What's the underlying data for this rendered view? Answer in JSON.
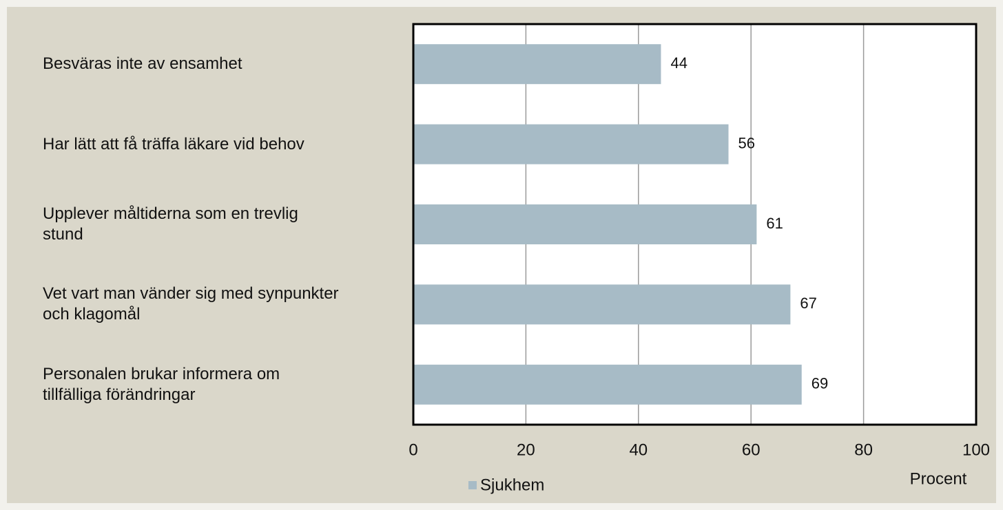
{
  "chart_data": {
    "type": "bar",
    "orientation": "horizontal",
    "categories": [
      "Besväras inte av ensamhet",
      "Har lätt att få träffa läkare vid behov",
      "Upplever måltiderna som en trevlig stund",
      "Vet vart man vänder sig med synpunkter och klagomål",
      "Personalen brukar informera om tillfälliga förändringar"
    ],
    "series": [
      {
        "name": "Sjukhem",
        "color": "#a7bbc6",
        "values": [
          44,
          56,
          61,
          67,
          69
        ]
      }
    ],
    "x_label": "Procent",
    "xlim": [
      0,
      100
    ],
    "xticks": [
      0,
      20,
      40,
      60,
      80,
      100
    ],
    "grid": true,
    "legend": "bottom"
  }
}
